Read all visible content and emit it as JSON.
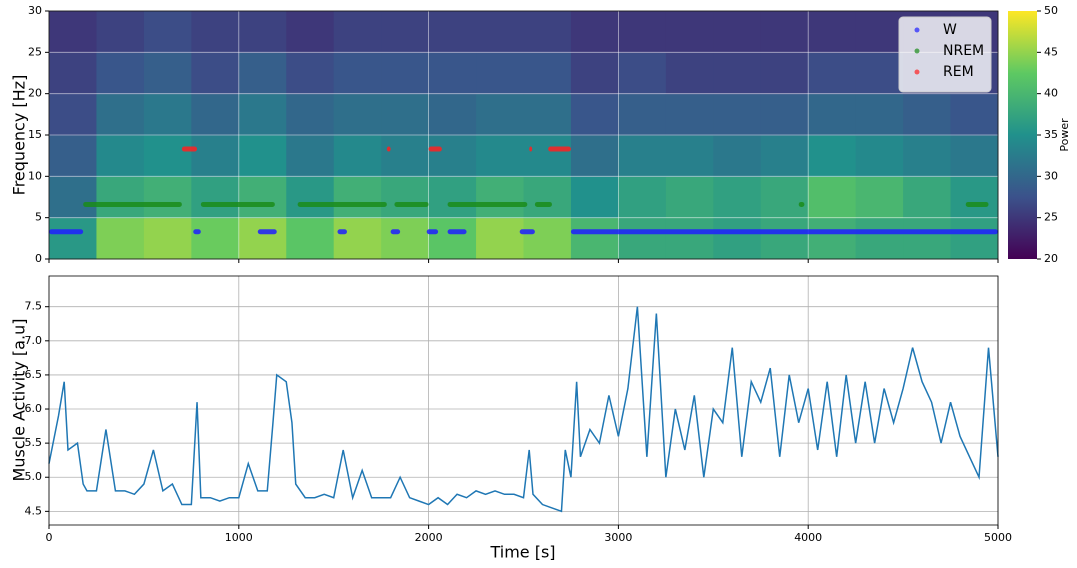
{
  "chart_data": [
    {
      "type": "heatmap",
      "ylabel": "Frequency [Hz]",
      "xlim": [
        0,
        5000
      ],
      "xticks": [
        0,
        1000,
        2000,
        3000,
        4000,
        5000
      ],
      "ylim": [
        0,
        30
      ],
      "yticks": [
        0,
        5,
        10,
        15,
        20,
        25,
        30
      ],
      "grid": true,
      "x_bins": [
        0,
        250,
        500,
        750,
        1000,
        1250,
        1500,
        1750,
        2000,
        2250,
        2500,
        2750,
        3000,
        3250,
        3500,
        3750,
        4000,
        4250,
        4500,
        4750,
        5000
      ],
      "y_bins": [
        0,
        5,
        10,
        15,
        20,
        25,
        30
      ],
      "z": [
        [
          36,
          44,
          45,
          43,
          45,
          42,
          45,
          44,
          42,
          45,
          44,
          40,
          38,
          38,
          37,
          38,
          39,
          38,
          38,
          37
        ],
        [
          31,
          38,
          39,
          37,
          39,
          36,
          39,
          38,
          37,
          39,
          38,
          35,
          37,
          38,
          37,
          38,
          41,
          40,
          38,
          36
        ],
        [
          29,
          34,
          35,
          33,
          35,
          32,
          34,
          33,
          33,
          34,
          34,
          31,
          33,
          33,
          32,
          33,
          35,
          34,
          33,
          32
        ],
        [
          27,
          31,
          32,
          30,
          32,
          30,
          31,
          31,
          30,
          31,
          31,
          28,
          29,
          29,
          29,
          29,
          30,
          30,
          29,
          28
        ],
        [
          26,
          28,
          29,
          27,
          29,
          27,
          28,
          28,
          28,
          28,
          28,
          26,
          27,
          26,
          26,
          26,
          27,
          27,
          26,
          26
        ],
        [
          25,
          26,
          27,
          26,
          26,
          25,
          26,
          26,
          26,
          26,
          26,
          25,
          25,
          25,
          25,
          25,
          25,
          25,
          25,
          25
        ]
      ],
      "colorbar": {
        "label": "Power",
        "lim": [
          20,
          50
        ],
        "ticks": [
          20,
          25,
          30,
          35,
          40,
          45,
          50
        ]
      },
      "legend": "upper right",
      "series": [
        {
          "name": "W",
          "color": "#1f1fff",
          "value": 3.3,
          "intervals": [
            [
              0,
              180
            ],
            [
              760,
              800
            ],
            [
              1100,
              1200
            ],
            [
              1520,
              1570
            ],
            [
              1800,
              1850
            ],
            [
              1990,
              2050
            ],
            [
              2100,
              2200
            ],
            [
              2480,
              2560
            ],
            [
              2750,
              5000
            ]
          ]
        },
        {
          "name": "NREM",
          "color": "#1a8c1a",
          "value": 6.6,
          "intervals": [
            [
              180,
              700
            ],
            [
              800,
              1190
            ],
            [
              1310,
              1780
            ],
            [
              1820,
              2000
            ],
            [
              2100,
              2520
            ],
            [
              2560,
              2650
            ],
            [
              3950,
              3980
            ],
            [
              4830,
              4950
            ]
          ]
        },
        {
          "name": "REM",
          "color": "#ff2020",
          "value": 13.3,
          "intervals": [
            [
              700,
              780
            ],
            [
              1780,
              1800
            ],
            [
              2000,
              2070
            ],
            [
              2530,
              2545
            ],
            [
              2630,
              2750
            ]
          ]
        }
      ]
    },
    {
      "type": "line",
      "xlabel": "Time [s]",
      "ylabel": "Muscle Activity [a.u]",
      "xlim": [
        0,
        5000
      ],
      "xticks": [
        0,
        1000,
        2000,
        3000,
        4000,
        5000
      ],
      "ylim": [
        4.3,
        7.95
      ],
      "yticks": [
        4.5,
        {
          "value": 5,
          "label": "5.0"
        },
        5.5,
        {
          "value": 6,
          "label": "6.0"
        },
        6.5,
        {
          "value": 7,
          "label": "7.0"
        },
        7.5
      ],
      "grid": true,
      "color": "#1f77b4",
      "x": [
        0,
        50,
        80,
        100,
        150,
        180,
        200,
        250,
        300,
        350,
        400,
        450,
        500,
        550,
        600,
        650,
        700,
        750,
        780,
        800,
        850,
        900,
        950,
        1000,
        1050,
        1100,
        1150,
        1180,
        1200,
        1250,
        1280,
        1300,
        1350,
        1400,
        1450,
        1500,
        1550,
        1600,
        1650,
        1700,
        1750,
        1800,
        1850,
        1900,
        1950,
        2000,
        2050,
        2100,
        2150,
        2200,
        2250,
        2300,
        2350,
        2400,
        2450,
        2500,
        2530,
        2550,
        2600,
        2650,
        2700,
        2720,
        2750,
        2780,
        2800,
        2850,
        2900,
        2950,
        3000,
        3050,
        3100,
        3150,
        3200,
        3250,
        3300,
        3350,
        3400,
        3450,
        3500,
        3550,
        3600,
        3650,
        3700,
        3750,
        3800,
        3850,
        3900,
        3950,
        4000,
        4050,
        4100,
        4150,
        4200,
        4250,
        4300,
        4350,
        4400,
        4450,
        4500,
        4550,
        4600,
        4650,
        4700,
        4750,
        4800,
        4850,
        4900,
        4950,
        5000
      ],
      "values": [
        5.2,
        5.9,
        6.4,
        5.4,
        5.5,
        4.9,
        4.8,
        4.8,
        5.7,
        4.8,
        4.8,
        4.75,
        4.9,
        5.4,
        4.8,
        4.9,
        4.6,
        4.6,
        6.1,
        4.7,
        4.7,
        4.65,
        4.7,
        4.7,
        5.2,
        4.8,
        4.8,
        5.8,
        6.5,
        6.4,
        5.8,
        4.9,
        4.7,
        4.7,
        4.75,
        4.7,
        5.4,
        4.7,
        5.1,
        4.7,
        4.7,
        4.7,
        5.0,
        4.7,
        4.65,
        4.6,
        4.7,
        4.6,
        4.75,
        4.7,
        4.8,
        4.75,
        4.8,
        4.75,
        4.75,
        4.7,
        5.4,
        4.75,
        4.6,
        4.55,
        4.5,
        5.4,
        5.0,
        6.4,
        5.3,
        5.7,
        5.5,
        6.2,
        5.6,
        6.3,
        7.5,
        5.3,
        7.4,
        5.0,
        6.0,
        5.4,
        6.2,
        5.0,
        6.0,
        5.8,
        6.9,
        5.3,
        6.4,
        6.1,
        6.6,
        5.3,
        6.5,
        5.8,
        6.3,
        5.4,
        6.4,
        5.3,
        6.5,
        5.5,
        6.4,
        5.5,
        6.3,
        5.8,
        6.3,
        6.9,
        6.4,
        6.1,
        5.5,
        6.1,
        5.6,
        5.3,
        5.0,
        6.9,
        5.3
      ]
    }
  ]
}
